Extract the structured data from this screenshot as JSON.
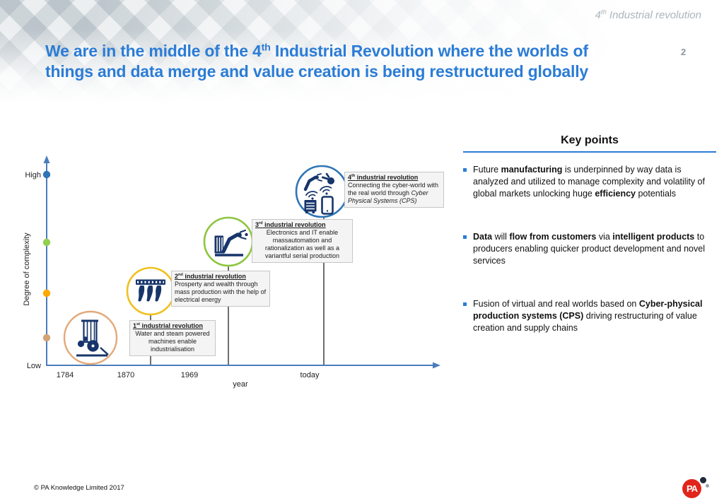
{
  "slide": {
    "corner_tag": [
      {
        "t": "4"
      },
      {
        "t": "th",
        "sup": true
      },
      {
        "t": " Industrial revolution"
      }
    ],
    "page_number": "2",
    "title_line1": [
      {
        "t": "We are in the middle of the 4"
      },
      {
        "t": "th",
        "sup": true
      },
      {
        "t": " Industrial Revolution where the worlds of"
      }
    ],
    "title_line2": [
      {
        "t": "things and data merge and value creation is being restructured globally"
      }
    ]
  },
  "figure": {
    "y_axis_label": "Degree of complexity",
    "y_high": "High",
    "y_low": "Low",
    "x_label": "year",
    "x_ticks": [
      "1784",
      "1870",
      "1969",
      "today"
    ],
    "boxes": [
      {
        "title": [
          {
            "t": "1"
          },
          {
            "t": "st",
            "sup": true
          },
          {
            "t": " industrial revolution"
          }
        ],
        "body": [
          {
            "t": "Water and steam powered machines enable industrialisation"
          }
        ],
        "icon": "steam-engine-icon",
        "circle_color": "#e3a878"
      },
      {
        "title": [
          {
            "t": "2"
          },
          {
            "t": "nd",
            "sup": true
          },
          {
            "t": " industrial revolution"
          }
        ],
        "body": [
          {
            "t": "Prosperty and wealth through mass production with the help of electrical energy"
          }
        ],
        "icon": "assembly-line-icon",
        "circle_color": "#eec120"
      },
      {
        "title": [
          {
            "t": "3"
          },
          {
            "t": "rd",
            "sup": true
          },
          {
            "t": " industrial revolution"
          }
        ],
        "body": [
          {
            "t": "Electronics and IT enable massautomation and rationalization as well as a variantful serial production"
          }
        ],
        "icon": "robot-arm-icon",
        "circle_color": "#8cc63e"
      },
      {
        "title": [
          {
            "t": "4"
          },
          {
            "t": "th",
            "sup": true
          },
          {
            "t": " industrial revolution"
          }
        ],
        "body": [
          {
            "t": "Connecting the cyber-world with the real world through "
          },
          {
            "t": "Cyber Physical Systems (CPS)",
            "i": true
          }
        ],
        "icon": "cyber-physical-system-icon",
        "circle_color": "#2e75b6"
      }
    ]
  },
  "key_points": {
    "heading": "Key points",
    "bullets": [
      [
        {
          "t": "Future "
        },
        {
          "t": "manufacturing",
          "b": true
        },
        {
          "t": " is underpinned by way data is analyzed and utilized to manage complexity and volatility of global markets unlocking huge "
        },
        {
          "t": "efficiency",
          "b": true
        },
        {
          "t": " potentials"
        }
      ],
      [
        {
          "t": "Data",
          "b": true
        },
        {
          "t": " will "
        },
        {
          "t": "flow from customers",
          "b": true
        },
        {
          "t": " via "
        },
        {
          "t": "intelligent products",
          "b": true
        },
        {
          "t": " to producers enabling quicker product development and novel services"
        }
      ],
      [
        {
          "t": "Fusion of virtual and real worlds based on "
        },
        {
          "t": "Cyber-physical production systems (CPS)",
          "b": true
        },
        {
          "t": " driving restructuring of value creation and supply chains"
        }
      ]
    ]
  },
  "footer": {
    "copyright": "© PA Knowledge Limited 2017",
    "logo_text": "PA"
  },
  "colors": {
    "title_blue": "#2b7cd6",
    "axis_blue": "#4a7ebb",
    "icon_navy": "#17356b",
    "dot_blue": "#2e75b6",
    "dot_green": "#92d050",
    "dot_orange": "#ffa800",
    "dot_tan": "#d2a379",
    "logo_red": "#e1251b"
  }
}
